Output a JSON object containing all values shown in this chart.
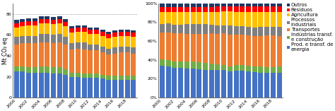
{
  "years": [
    2000,
    2001,
    2002,
    2003,
    2004,
    2005,
    2006,
    2007,
    2008,
    2009,
    2010,
    2011,
    2012,
    2013,
    2014,
    2015,
    2016,
    2017,
    2018,
    2019
  ],
  "categories": [
    "Prod. e transf. de energia",
    "Indústrias transf.\ne construção",
    "Transportes",
    "Processos industriais",
    "Agricultura",
    "Resíduos",
    "Outros"
  ],
  "colors": [
    "#4472C4",
    "#70AD47",
    "#ED7D31",
    "#7F7F7F",
    "#FFC000",
    "#FF0000",
    "#1F3864"
  ],
  "abs_data": [
    [
      25,
      25,
      24,
      24,
      24,
      24,
      23,
      23,
      22,
      20,
      20,
      19,
      19,
      19,
      18,
      17,
      17,
      17,
      17,
      17
    ],
    [
      5,
      5,
      5,
      5,
      6,
      6,
      6,
      6,
      5,
      4,
      4,
      4,
      4,
      4,
      4,
      4,
      4,
      4,
      4,
      4
    ],
    [
      21,
      22,
      23,
      23,
      23,
      23,
      23,
      24,
      24,
      22,
      23,
      23,
      22,
      22,
      21,
      20,
      21,
      22,
      22,
      21
    ],
    [
      7,
      7,
      7,
      7,
      8,
      8,
      8,
      8,
      7,
      6,
      6,
      7,
      6,
      6,
      6,
      6,
      6,
      6,
      6,
      6
    ],
    [
      9,
      9,
      10,
      10,
      10,
      10,
      10,
      10,
      10,
      10,
      10,
      10,
      10,
      10,
      10,
      10,
      10,
      10,
      10,
      10
    ],
    [
      4,
      4,
      4,
      4,
      4,
      4,
      4,
      4,
      4,
      4,
      4,
      4,
      4,
      4,
      4,
      4,
      4,
      4,
      4,
      4
    ],
    [
      3,
      3,
      3,
      3,
      3,
      3,
      3,
      3,
      3,
      2,
      2,
      2,
      2,
      2,
      2,
      2,
      2,
      2,
      2,
      2
    ]
  ],
  "ylabel_abs": "Mt CO₂ eq",
  "ylim_abs": [
    0,
    90
  ],
  "yticks_abs": [
    0,
    20,
    40,
    60,
    80
  ],
  "ytick_labels_abs": [
    "0",
    "20",
    "40",
    "60",
    "80"
  ],
  "gridline_abs": 80,
  "ylim_pct": [
    0,
    1.0
  ],
  "yticks_pct": [
    0.0,
    0.2,
    0.4,
    0.6,
    0.8,
    1.0
  ],
  "ytick_labels_pct": [
    "0%",
    "20%",
    "40%",
    "60%",
    "80%",
    "100%"
  ],
  "legend_labels": [
    "Outros",
    "Resíduos",
    "Agricultura",
    "Processos\nindustriais",
    "Transportes",
    "Indústrias transf.\ne construção",
    "Prod. e transf. de\nenergia"
  ],
  "legend_colors": [
    "#1F3864",
    "#FF0000",
    "#FFC000",
    "#7F7F7F",
    "#ED7D31",
    "#70AD47",
    "#4472C4"
  ],
  "background_color": "#FFFFFF",
  "tick_fontsize": 4.5,
  "legend_fontsize": 5.0,
  "ylabel_fontsize": 5.5
}
